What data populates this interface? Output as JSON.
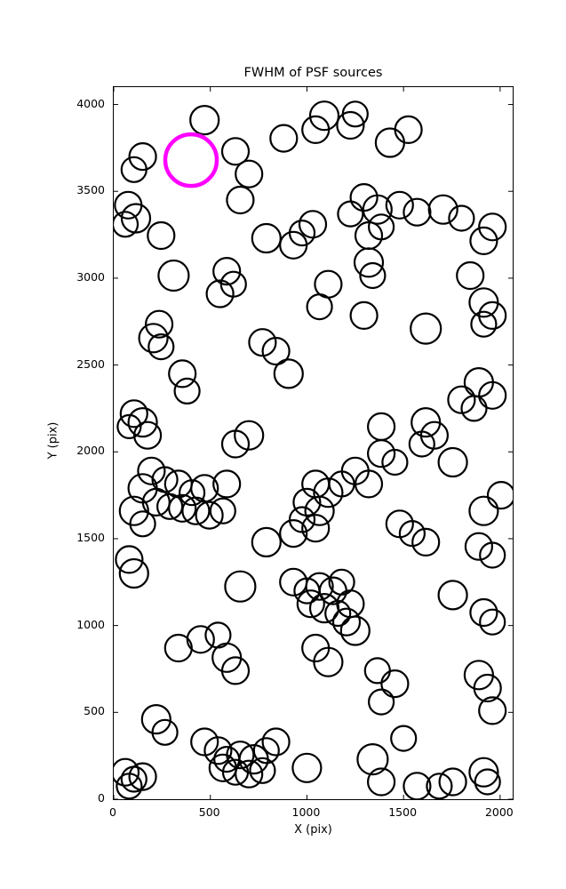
{
  "chart_data": {
    "type": "scatter",
    "title": "FWHM of PSF sources",
    "xlabel": "X (pix)",
    "ylabel": "Y (pix)",
    "xlim": [
      0,
      2065
    ],
    "ylim": [
      0,
      4100
    ],
    "xticks": [
      0,
      500,
      1000,
      1500,
      2000
    ],
    "yticks": [
      0,
      500,
      1000,
      1500,
      2000,
      2500,
      3000,
      3500,
      4000
    ],
    "grid": false,
    "legend": "none",
    "marker": {
      "shape": "open-circle",
      "stroke_color": "#000000",
      "stroke_width_px": 2.2,
      "fill": "none"
    },
    "highlight": {
      "x": 400,
      "y": 3680,
      "radius_px": 29,
      "stroke_color": "#FF00FF",
      "stroke_width_px": 4.5,
      "fill": "none"
    },
    "points": [
      [
        470,
        3910,
        16
      ],
      [
        630,
        3730,
        15
      ],
      [
        700,
        3600,
        15
      ],
      [
        150,
        3700,
        15
      ],
      [
        105,
        3625,
        14
      ],
      [
        880,
        3805,
        15
      ],
      [
        1045,
        3855,
        15
      ],
      [
        1090,
        3935,
        16
      ],
      [
        1225,
        3880,
        15
      ],
      [
        1250,
        3945,
        14
      ],
      [
        1430,
        3780,
        16
      ],
      [
        1525,
        3855,
        15
      ],
      [
        75,
        3420,
        15
      ],
      [
        115,
        3345,
        16
      ],
      [
        60,
        3310,
        14
      ],
      [
        655,
        3450,
        15
      ],
      [
        1295,
        3465,
        15
      ],
      [
        1365,
        3395,
        16
      ],
      [
        1225,
        3370,
        14
      ],
      [
        1480,
        3420,
        15
      ],
      [
        1570,
        3380,
        15
      ],
      [
        1705,
        3395,
        16
      ],
      [
        1800,
        3345,
        14
      ],
      [
        1960,
        3295,
        15
      ],
      [
        1915,
        3215,
        15
      ],
      [
        1385,
        3295,
        14
      ],
      [
        1320,
        3245,
        15
      ],
      [
        1030,
        3310,
        15
      ],
      [
        975,
        3260,
        14
      ],
      [
        930,
        3190,
        15
      ],
      [
        790,
        3230,
        16
      ],
      [
        245,
        3245,
        15
      ],
      [
        310,
        3015,
        17
      ],
      [
        585,
        3040,
        15
      ],
      [
        620,
        2965,
        14
      ],
      [
        550,
        2910,
        15
      ],
      [
        1110,
        2965,
        15
      ],
      [
        1320,
        3090,
        16
      ],
      [
        1340,
        3015,
        14
      ],
      [
        1615,
        2710,
        17
      ],
      [
        1845,
        3015,
        15
      ],
      [
        1915,
        2860,
        16
      ],
      [
        1960,
        2785,
        15
      ],
      [
        1915,
        2735,
        14
      ],
      [
        1295,
        2785,
        15
      ],
      [
        1065,
        2835,
        14
      ],
      [
        235,
        2735,
        15
      ],
      [
        205,
        2655,
        16
      ],
      [
        245,
        2605,
        14
      ],
      [
        770,
        2630,
        15
      ],
      [
        840,
        2580,
        15
      ],
      [
        905,
        2450,
        16
      ],
      [
        355,
        2450,
        15
      ],
      [
        380,
        2350,
        14
      ],
      [
        1890,
        2400,
        16
      ],
      [
        1800,
        2300,
        15
      ],
      [
        1865,
        2250,
        14
      ],
      [
        1960,
        2325,
        15
      ],
      [
        105,
        2220,
        15
      ],
      [
        150,
        2170,
        16
      ],
      [
        80,
        2145,
        13
      ],
      [
        175,
        2095,
        15
      ],
      [
        700,
        2095,
        16
      ],
      [
        630,
        2045,
        15
      ],
      [
        1385,
        2145,
        15
      ],
      [
        1615,
        2170,
        16
      ],
      [
        1660,
        2095,
        15
      ],
      [
        1595,
        2045,
        14
      ],
      [
        1385,
        1990,
        15
      ],
      [
        1455,
        1940,
        14
      ],
      [
        1755,
        1940,
        16
      ],
      [
        2005,
        1750,
        15
      ],
      [
        195,
        1890,
        15
      ],
      [
        265,
        1840,
        14
      ],
      [
        335,
        1815,
        15
      ],
      [
        150,
        1790,
        16
      ],
      [
        405,
        1765,
        14
      ],
      [
        470,
        1790,
        15
      ],
      [
        585,
        1815,
        15
      ],
      [
        220,
        1710,
        15
      ],
      [
        290,
        1685,
        14
      ],
      [
        355,
        1675,
        15
      ],
      [
        425,
        1660,
        15
      ],
      [
        105,
        1660,
        16
      ],
      [
        150,
        1585,
        14
      ],
      [
        495,
        1635,
        15
      ],
      [
        565,
        1660,
        14
      ],
      [
        1045,
        1815,
        15
      ],
      [
        1110,
        1765,
        16
      ],
      [
        1180,
        1815,
        14
      ],
      [
        1250,
        1890,
        15
      ],
      [
        1320,
        1815,
        15
      ],
      [
        1000,
        1710,
        15
      ],
      [
        1065,
        1660,
        16
      ],
      [
        975,
        1610,
        14
      ],
      [
        1045,
        1560,
        15
      ],
      [
        930,
        1530,
        15
      ],
      [
        790,
        1480,
        16
      ],
      [
        1480,
        1585,
        15
      ],
      [
        1545,
        1530,
        14
      ],
      [
        1615,
        1480,
        15
      ],
      [
        1915,
        1660,
        16
      ],
      [
        1890,
        1455,
        15
      ],
      [
        1960,
        1405,
        14
      ],
      [
        80,
        1380,
        15
      ],
      [
        105,
        1300,
        16
      ],
      [
        655,
        1225,
        17
      ],
      [
        930,
        1250,
        15
      ],
      [
        1000,
        1200,
        14
      ],
      [
        1065,
        1225,
        15
      ],
      [
        1135,
        1200,
        15
      ],
      [
        1180,
        1250,
        14
      ],
      [
        1020,
        1125,
        15
      ],
      [
        1090,
        1100,
        16
      ],
      [
        1160,
        1070,
        14
      ],
      [
        1225,
        1125,
        15
      ],
      [
        1755,
        1175,
        16
      ],
      [
        1915,
        1075,
        15
      ],
      [
        1960,
        1020,
        14
      ],
      [
        1205,
        1020,
        15
      ],
      [
        1250,
        970,
        16
      ],
      [
        450,
        920,
        15
      ],
      [
        540,
        945,
        14
      ],
      [
        335,
        870,
        15
      ],
      [
        585,
        815,
        16
      ],
      [
        630,
        740,
        15
      ],
      [
        1045,
        870,
        15
      ],
      [
        1110,
        790,
        16
      ],
      [
        1365,
        740,
        14
      ],
      [
        1455,
        665,
        15
      ],
      [
        1890,
        715,
        16
      ],
      [
        1935,
        640,
        15
      ],
      [
        1385,
        560,
        14
      ],
      [
        1960,
        510,
        15
      ],
      [
        220,
        460,
        16
      ],
      [
        265,
        385,
        14
      ],
      [
        470,
        330,
        15
      ],
      [
        540,
        280,
        15
      ],
      [
        585,
        230,
        14
      ],
      [
        655,
        255,
        15
      ],
      [
        725,
        230,
        16
      ],
      [
        790,
        280,
        14
      ],
      [
        840,
        330,
        15
      ],
      [
        565,
        180,
        15
      ],
      [
        630,
        155,
        14
      ],
      [
        700,
        145,
        15
      ],
      [
        770,
        165,
        14
      ],
      [
        60,
        155,
        15
      ],
      [
        105,
        115,
        14
      ],
      [
        150,
        130,
        15
      ],
      [
        80,
        75,
        14
      ],
      [
        1000,
        180,
        16
      ],
      [
        1340,
        230,
        17
      ],
      [
        1500,
        350,
        14
      ],
      [
        1385,
        100,
        15
      ],
      [
        1570,
        75,
        15
      ],
      [
        1685,
        75,
        14
      ],
      [
        1755,
        100,
        15
      ],
      [
        1915,
        155,
        16
      ],
      [
        1935,
        100,
        14
      ]
    ]
  }
}
